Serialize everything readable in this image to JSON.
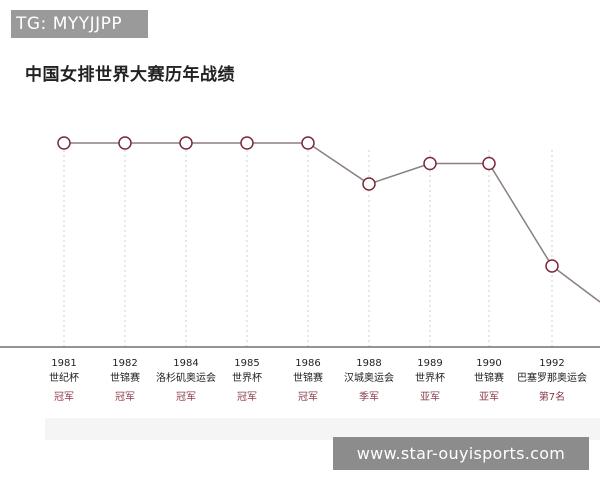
{
  "watermark_top": "TG: MYYJJPP",
  "watermark_bottom": "www.star-ouyisports.com",
  "chart_data": {
    "type": "line",
    "title": "中国女排世界大赛历年战绩",
    "xlabel": "",
    "ylabel": "",
    "grid": false,
    "legend": "none",
    "colors": {
      "line": "#8a7f82",
      "marker_stroke": "#7a2a3a",
      "marker_fill": "#ffffff",
      "dropline": "#cfcfcf",
      "axis": "#555555",
      "result_text": "#8b3a4a"
    },
    "points": [
      {
        "year": "1981",
        "event": "世纪杯",
        "result": "冠军",
        "rank": 1
      },
      {
        "year": "1982",
        "event": "世锦赛",
        "result": "冠军",
        "rank": 1
      },
      {
        "year": "1984",
        "event": "洛杉矶奥运会",
        "result": "冠军",
        "rank": 1
      },
      {
        "year": "1985",
        "event": "世界杯",
        "result": "冠军",
        "rank": 1
      },
      {
        "year": "1986",
        "event": "世锦赛",
        "result": "冠军",
        "rank": 1
      },
      {
        "year": "1988",
        "event": "汉城奥运会",
        "result": "季军",
        "rank": 3
      },
      {
        "year": "1989",
        "event": "世界杯",
        "result": "亚军",
        "rank": 2
      },
      {
        "year": "1990",
        "event": "世锦赛",
        "result": "亚军",
        "rank": 2
      },
      {
        "year": "1992",
        "event": "巴塞罗那奥运会",
        "result": "第7名",
        "rank": 7
      }
    ]
  }
}
